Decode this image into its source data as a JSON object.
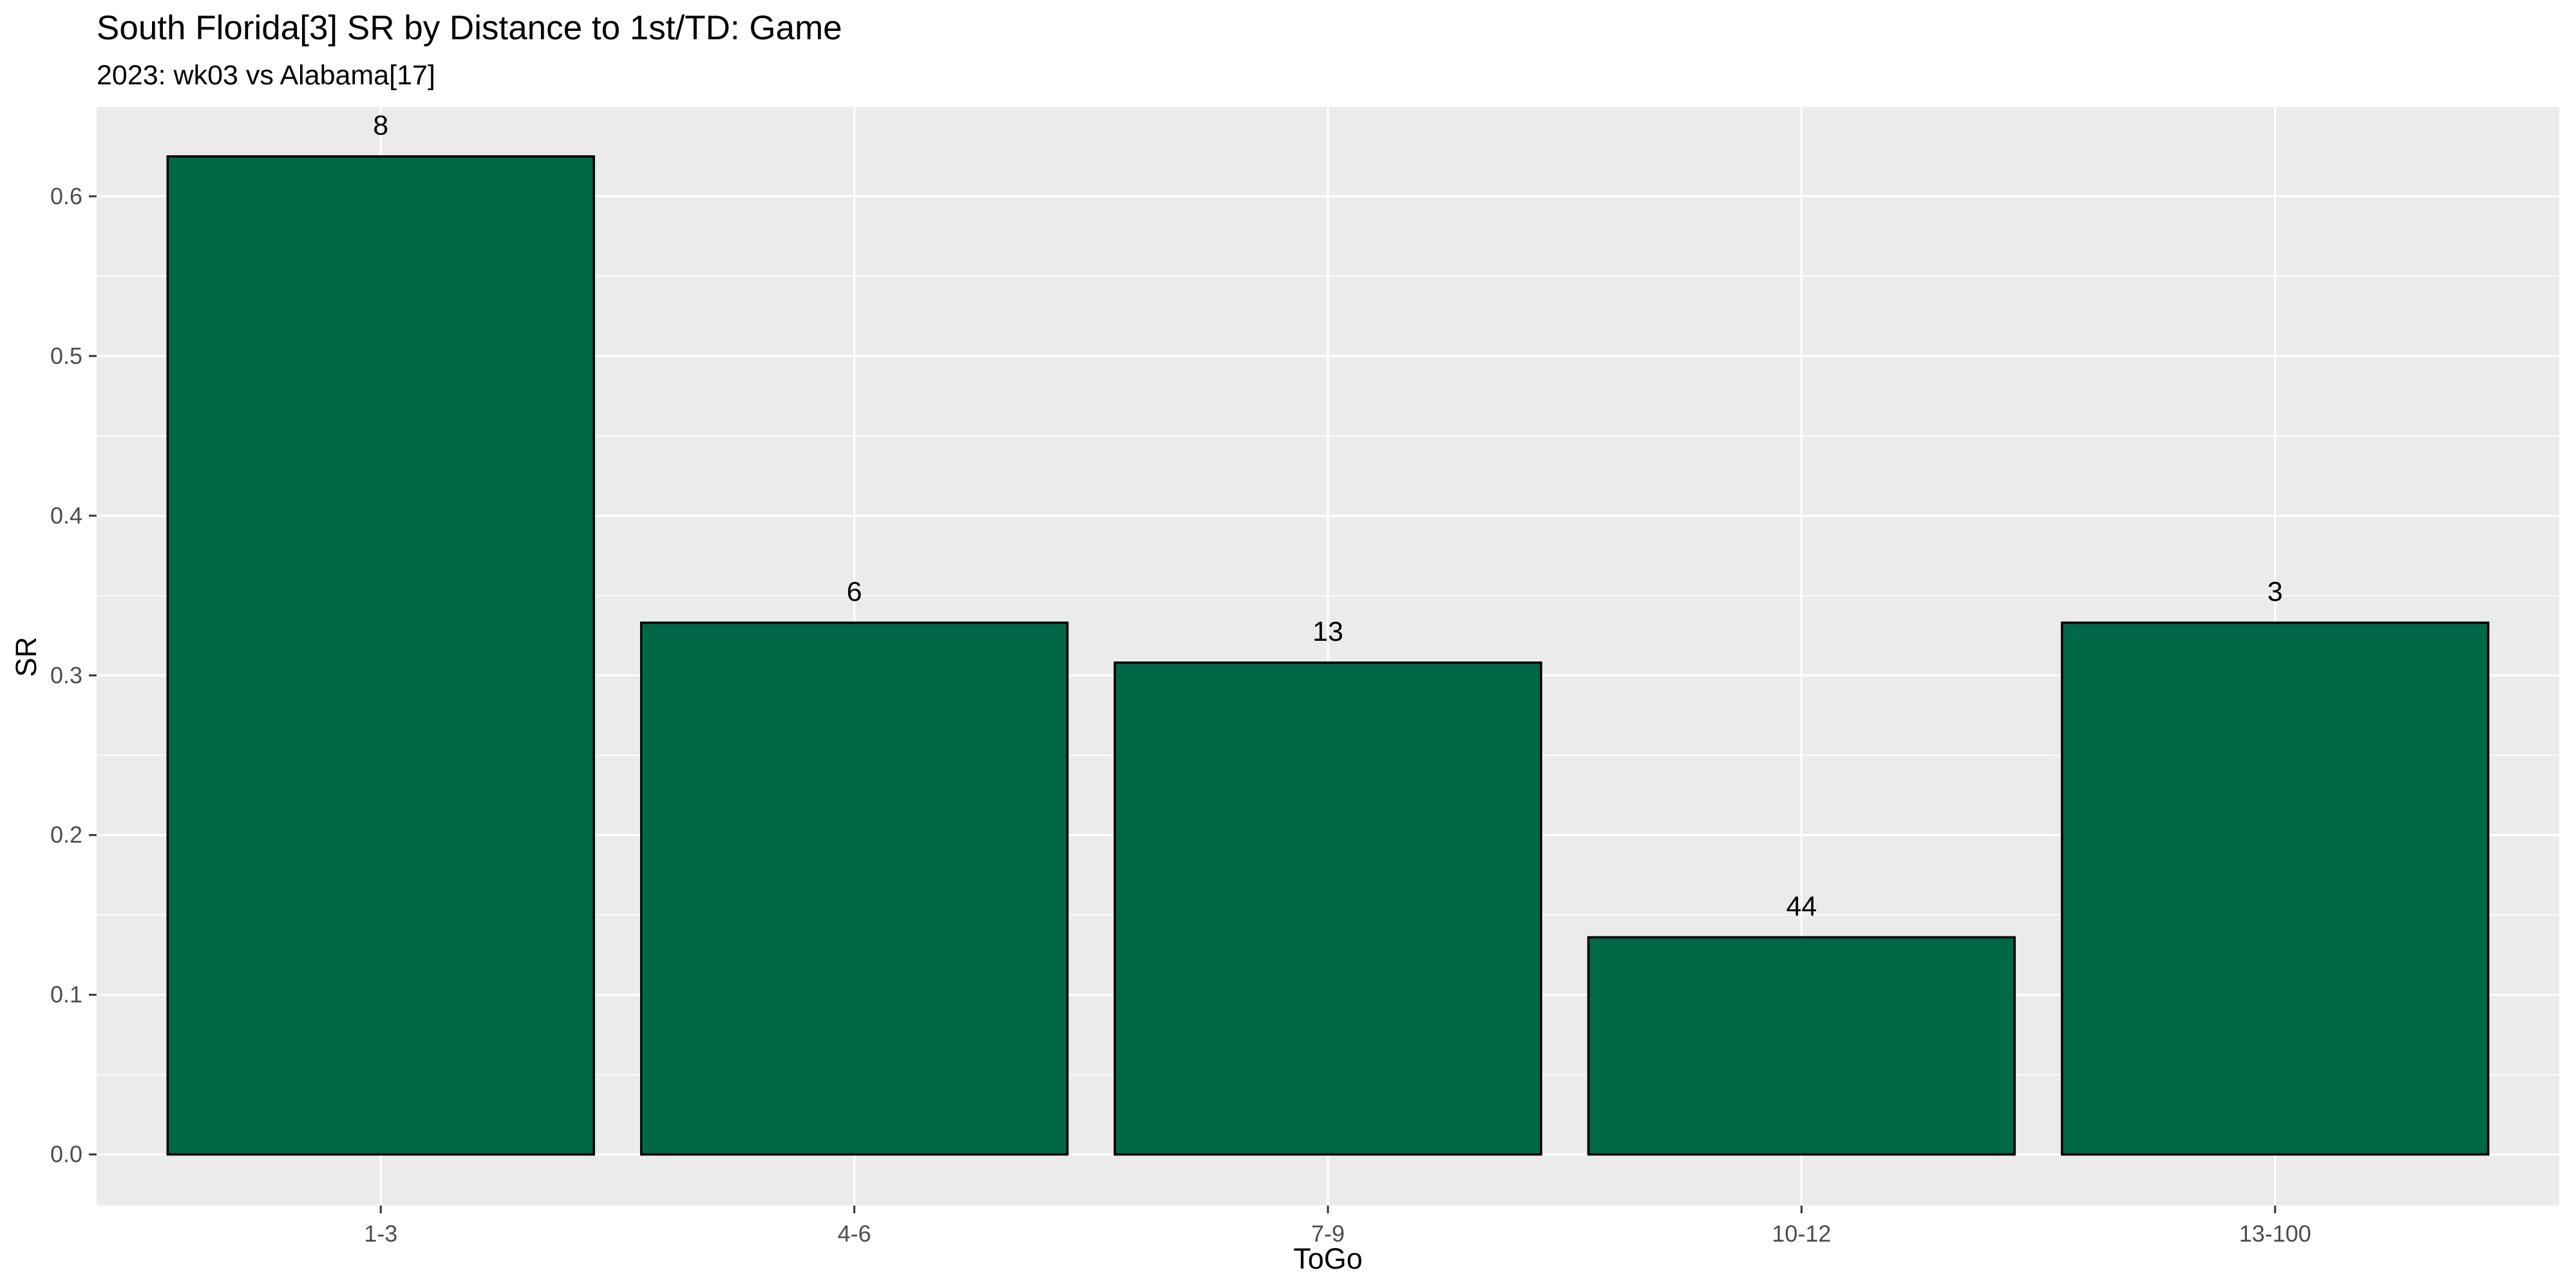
{
  "chart_data": {
    "type": "bar",
    "title": "South Florida[3] SR by Distance to 1st/TD: Game",
    "subtitle": "2023: wk03 vs Alabama[17]",
    "xlabel": "ToGo",
    "ylabel": "SR",
    "categories": [
      "1-3",
      "4-6",
      "7-9",
      "10-12",
      "13-100"
    ],
    "values": [
      0.625,
      0.333,
      0.308,
      0.136,
      0.333
    ],
    "data_labels": [
      "8",
      "6",
      "13",
      "44",
      "3"
    ],
    "ylim": [
      -0.032,
      0.656
    ],
    "yticks": [
      0.0,
      0.1,
      0.2,
      0.3,
      0.4,
      0.5,
      0.6
    ],
    "ytick_labels": [
      "0.0",
      "0.1",
      "0.2",
      "0.3",
      "0.4",
      "0.5",
      "0.6"
    ],
    "grid": true,
    "legend": "none",
    "bar_color": "#006747",
    "bar_outline": "#000000",
    "panel_background": "#EBEBEB"
  }
}
